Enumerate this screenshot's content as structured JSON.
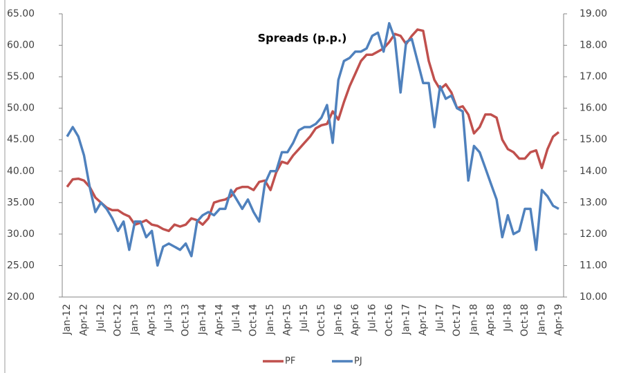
{
  "chart_data": {
    "type": "line",
    "title": "Spreads (p.p.)",
    "categories": [
      "Jan-12",
      null,
      null,
      "Apr-12",
      null,
      null,
      "Jul-12",
      null,
      null,
      "Oct-12",
      null,
      null,
      "Jan-13",
      null,
      null,
      "Apr-13",
      null,
      null,
      "Jul-13",
      null,
      null,
      "Oct-13",
      null,
      null,
      "Jan-14",
      null,
      null,
      "Apr-14",
      null,
      null,
      "Jul-14",
      null,
      null,
      "Oct-14",
      null,
      null,
      "Jan-15",
      null,
      null,
      "Apr-15",
      null,
      null,
      "Jul-15",
      null,
      null,
      "Oct-15",
      null,
      null,
      "Jan-16",
      null,
      null,
      "Apr-16",
      null,
      null,
      "Jul-16",
      null,
      null,
      "Oct-16",
      null,
      null,
      "Jan-17",
      null,
      null,
      "Apr-17",
      null,
      null,
      "Jul-17",
      null,
      null,
      "Oct-17",
      null,
      null,
      "Jan-18",
      null,
      null,
      "Apr-18",
      null,
      null,
      "Jul-18",
      null,
      null,
      "Oct-18",
      null,
      null,
      "Jan-19",
      null,
      null,
      "Apr-19"
    ],
    "series": [
      {
        "name": "PF",
        "color": "#c0504d",
        "values": [
          37.5,
          38.7,
          38.8,
          38.5,
          37.5,
          35.8,
          35,
          34.2,
          33.8,
          33.8,
          33.2,
          32.8,
          31.5,
          31.8,
          32.2,
          31.5,
          31.3,
          30.8,
          30.5,
          31.5,
          31.2,
          31.5,
          32.5,
          32.2,
          31.5,
          32.5,
          35,
          35.3,
          35.5,
          36,
          37.2,
          37.5,
          37.5,
          37,
          38.3,
          38.5,
          37,
          39.8,
          41.5,
          41.2,
          42.5,
          43.5,
          44.5,
          45.5,
          46.8,
          47.3,
          47.5,
          49.5,
          48.2,
          51,
          53.5,
          55.5,
          57.5,
          58.5,
          58.5,
          59,
          59.5,
          60.5,
          61.8,
          61.5,
          60.2,
          61.5,
          62.5,
          62.3,
          57.5,
          54.5,
          53,
          53.8,
          52.5,
          50,
          50.3,
          49,
          46,
          47,
          49,
          49,
          48.5,
          45,
          43.5,
          43,
          42,
          42,
          43,
          43.3,
          40.5,
          43.5,
          45.5,
          46.2
        ]
      },
      {
        "name": "PJ",
        "color": "#4f81bd",
        "axis": "y2",
        "values": [
          15.1,
          15.4,
          15.1,
          14.5,
          13.5,
          12.7,
          13.0,
          12.8,
          12.5,
          12.1,
          12.4,
          11.5,
          12.4,
          12.4,
          11.9,
          12.1,
          11.0,
          11.6,
          11.7,
          11.6,
          11.5,
          11.7,
          11.3,
          12.4,
          12.6,
          12.7,
          12.6,
          12.8,
          12.8,
          13.4,
          13.1,
          12.8,
          13.1,
          12.7,
          12.4,
          13.6,
          14.0,
          14.0,
          14.6,
          14.6,
          14.9,
          15.3,
          15.4,
          15.4,
          15.5,
          15.7,
          16.1,
          14.9,
          16.9,
          17.5,
          17.6,
          17.8,
          17.8,
          17.9,
          18.3,
          18.4,
          17.8,
          18.7,
          18.2,
          16.5,
          18.1,
          18.2,
          17.5,
          16.8,
          16.8,
          15.4,
          16.7,
          16.3,
          16.4,
          16.0,
          15.9,
          13.7,
          14.8,
          14.6,
          14.1,
          13.6,
          13.1,
          11.9,
          12.6,
          12.0,
          12.1,
          12.8,
          12.8,
          11.5,
          13.4,
          13.2,
          12.9,
          12.8
        ]
      }
    ],
    "ylim": [
      20,
      65
    ],
    "yticks": [
      {
        "value": 20,
        "label": "20.00"
      },
      {
        "value": 25,
        "label": "25.00"
      },
      {
        "value": 30,
        "label": "30.00"
      },
      {
        "value": 35,
        "label": "35.00"
      },
      {
        "value": 40,
        "label": "40.00"
      },
      {
        "value": 45,
        "label": "45.00"
      },
      {
        "value": 50,
        "label": "50.00"
      },
      {
        "value": 55,
        "label": "55.00"
      },
      {
        "value": 60,
        "label": "60.00"
      },
      {
        "value": 65,
        "label": "65.00"
      }
    ],
    "y2lim": [
      10,
      19
    ],
    "y2ticks": [
      {
        "value": 10,
        "label": "10.00"
      },
      {
        "value": 11,
        "label": "11.00"
      },
      {
        "value": 12,
        "label": "12.00"
      },
      {
        "value": 13,
        "label": "13.00"
      },
      {
        "value": 14,
        "label": "14.00"
      },
      {
        "value": 15,
        "label": "15.00"
      },
      {
        "value": 16,
        "label": "16.00"
      },
      {
        "value": 17,
        "label": "17.00"
      },
      {
        "value": 18,
        "label": "18.00"
      },
      {
        "value": 19,
        "label": "19.00"
      }
    ],
    "yticks_color": "#ff0000",
    "grid": false,
    "legend": "bottom"
  }
}
